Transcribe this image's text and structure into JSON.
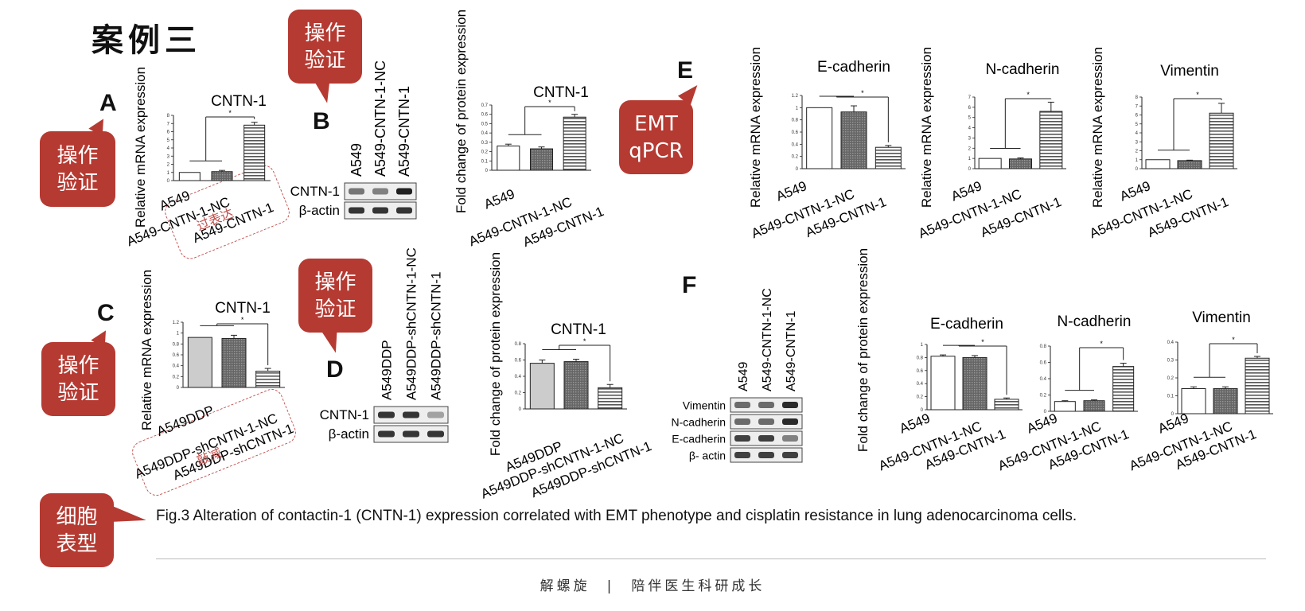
{
  "slide_title": "案例三",
  "bubbles": {
    "b1": "操作\n验证",
    "b2": "操作\n验证",
    "b3": "操作\n验证",
    "b4": "操作\n验证",
    "b5": "EMT\nqPCR",
    "b6": "细胞\n表型"
  },
  "annotations": {
    "overexpression": "过表达",
    "knockdown": "敲减"
  },
  "caption": "Fig.3 Alteration of contactin-1 (CNTN-1) expression correlated with EMT phenotype and cisplatin resistance in lung adenocarcinoma cells.",
  "footer": "解螺旋　|　陪伴医生科研成长",
  "panels": {
    "A": "A",
    "B": "B",
    "C": "C",
    "D": "D",
    "E": "E",
    "F": "F"
  },
  "blots": {
    "B": {
      "lanes": [
        "A549",
        "A549-CNTN-1-NC",
        "A549-CNTN-1"
      ],
      "rows": [
        "CNTN-1",
        "β-actin"
      ]
    },
    "D": {
      "lanes": [
        "A549DDP",
        "A549DDP-shCNTN-1-NC",
        "A549DDP-shCNTN-1"
      ],
      "rows": [
        "CNTN-1",
        "β-actin"
      ]
    },
    "F": {
      "lanes": [
        "A549",
        "A549-CNTN-1-NC",
        "A549-CNTN-1"
      ],
      "rows": [
        "Vimentin",
        "N-cadherin",
        "E-cadherin",
        "β- actin"
      ]
    }
  },
  "chart_data": [
    {
      "id": "A",
      "type": "bar",
      "title": "CNTN-1",
      "ylabel": "Relative mRNA expression",
      "categories": [
        "A549",
        "A549-CNTN-1-NC",
        "A549-CNTN-1"
      ],
      "values": [
        1,
        1.1,
        6.8
      ],
      "error": [
        0,
        0.15,
        0.35
      ],
      "ylim": [
        0,
        8
      ],
      "yticks": [
        0,
        1,
        2,
        3,
        4,
        5,
        6,
        7,
        8
      ],
      "fills": [
        "white",
        "dark",
        "stripe"
      ],
      "significance": "*"
    },
    {
      "id": "B",
      "type": "bar",
      "title": "CNTN-1",
      "ylabel": "Fold change of protein expression",
      "categories": [
        "A549",
        "A549-CNTN-1-NC",
        "A549-CNTN-1"
      ],
      "values": [
        0.26,
        0.23,
        0.57
      ],
      "error": [
        0.02,
        0.02,
        0.03
      ],
      "ylim": [
        0,
        0.7
      ],
      "yticks": [
        0,
        0.1,
        0.2,
        0.3,
        0.4,
        0.5,
        0.6,
        0.7
      ],
      "fills": [
        "white",
        "dark",
        "stripe"
      ],
      "significance": "*"
    },
    {
      "id": "C",
      "type": "bar",
      "title": "CNTN-1",
      "ylabel": "Relative mRNA expression",
      "categories": [
        "A549DDP",
        "A549DDP-shCNTN-1-NC",
        "A549DDP-shCNTN-1"
      ],
      "values": [
        0.92,
        0.9,
        0.3
      ],
      "error": [
        0,
        0.06,
        0.05
      ],
      "ylim": [
        0,
        1.2
      ],
      "yticks": [
        0,
        0.2,
        0.4,
        0.6,
        0.8,
        1.0,
        1.2
      ],
      "fills": [
        "gray",
        "dark",
        "stripe"
      ],
      "significance": "*"
    },
    {
      "id": "D",
      "type": "bar",
      "title": "CNTN-1",
      "ylabel": "Fold change of protein expression",
      "categories": [
        "A549DDP",
        "A549DDP-shCNTN-1-NC",
        "A549DDP-shCNTN-1"
      ],
      "values": [
        0.56,
        0.58,
        0.26
      ],
      "error": [
        0.04,
        0.03,
        0.04
      ],
      "ylim": [
        0,
        0.8
      ],
      "yticks": [
        0,
        0.2,
        0.4,
        0.6,
        0.8
      ],
      "fills": [
        "gray",
        "dark",
        "stripe"
      ],
      "significance": "*"
    },
    {
      "id": "E1",
      "type": "bar",
      "title": "E-cadherin",
      "ylabel": "Relative mRNA expression",
      "categories": [
        "A549",
        "A549-CNTN-1-NC",
        "A549-CNTN-1"
      ],
      "values": [
        1.0,
        0.93,
        0.35
      ],
      "error": [
        0,
        0.1,
        0.03
      ],
      "ylim": [
        0,
        1.2
      ],
      "yticks": [
        0,
        0.2,
        0.4,
        0.6,
        0.8,
        1.0,
        1.2
      ],
      "fills": [
        "white",
        "dark",
        "stripe"
      ],
      "significance": "*"
    },
    {
      "id": "E2",
      "type": "bar",
      "title": "N-cadherin",
      "ylabel": "Relative mRNA expression",
      "categories": [
        "A549",
        "A549-CNTN-1-NC",
        "A549-CNTN-1"
      ],
      "values": [
        1.0,
        0.95,
        5.6
      ],
      "error": [
        0,
        0.1,
        0.9
      ],
      "ylim": [
        0,
        7
      ],
      "yticks": [
        0,
        1,
        2,
        3,
        4,
        5,
        6,
        7
      ],
      "fills": [
        "white",
        "dark",
        "stripe"
      ],
      "significance": "*"
    },
    {
      "id": "E3",
      "type": "bar",
      "title": "Vimentin",
      "ylabel": "Relative mRNA expression",
      "categories": [
        "A549",
        "A549-CNTN-1-NC",
        "A549-CNTN-1"
      ],
      "values": [
        1.0,
        0.9,
        6.2
      ],
      "error": [
        0,
        0.05,
        1.1
      ],
      "ylim": [
        0,
        8
      ],
      "yticks": [
        0,
        1,
        2,
        3,
        4,
        5,
        6,
        7,
        8
      ],
      "fills": [
        "white",
        "dark",
        "stripe"
      ],
      "significance": "*"
    },
    {
      "id": "F1",
      "type": "bar",
      "title": "E-cadherin",
      "ylabel": "Fold change of protein expression",
      "categories": [
        "A549",
        "A549-CNTN-1-NC",
        "A549-CNTN-1"
      ],
      "values": [
        0.82,
        0.8,
        0.16
      ],
      "error": [
        0.02,
        0.03,
        0.02
      ],
      "ylim": [
        0,
        1.0
      ],
      "yticks": [
        0,
        0.2,
        0.4,
        0.6,
        0.8,
        1.0
      ],
      "fills": [
        "white",
        "dark",
        "stripe"
      ],
      "significance": "*"
    },
    {
      "id": "F2",
      "type": "bar",
      "title": "N-cadherin",
      "ylabel": "",
      "categories": [
        "A549",
        "A549-CNTN-1-NC",
        "A549-CNTN-1"
      ],
      "values": [
        0.12,
        0.13,
        0.55
      ],
      "error": [
        0.01,
        0.01,
        0.04
      ],
      "ylim": [
        0,
        0.8
      ],
      "yticks": [
        0,
        0.2,
        0.4,
        0.6,
        0.8
      ],
      "fills": [
        "white",
        "dark",
        "stripe"
      ],
      "significance": "*"
    },
    {
      "id": "F3",
      "type": "bar",
      "title": "Vimentin",
      "ylabel": "",
      "categories": [
        "A549",
        "A549-CNTN-1-NC",
        "A549-CNTN-1"
      ],
      "values": [
        0.14,
        0.14,
        0.31
      ],
      "error": [
        0.01,
        0.01,
        0.01
      ],
      "ylim": [
        0,
        0.4
      ],
      "yticks": [
        0,
        0.1,
        0.2,
        0.3,
        0.4
      ],
      "fills": [
        "white",
        "dark",
        "stripe"
      ],
      "significance": "*"
    }
  ]
}
